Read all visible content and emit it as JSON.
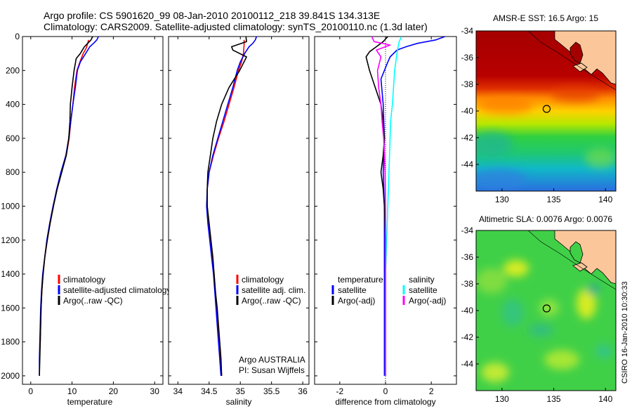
{
  "header": {
    "line1": "Argo profile: CS 5901620_99 08-Jan-2010 20100112_218 39.841S 134.313E",
    "line2": "Climatology: CARS2009. Satellite-adjusted climatology: synTS_20100110.nc (1.3d later)"
  },
  "colors": {
    "clim": "#ff0000",
    "sat": "#0000ff",
    "argo": "#000000",
    "sal_sat": "#00ffff",
    "sal_argo": "#ff00ff"
  },
  "depth_ticks": [
    0,
    200,
    400,
    600,
    800,
    1000,
    1200,
    1400,
    1600,
    1800,
    2000
  ],
  "chart_data": [
    {
      "type": "line",
      "name": "temperature",
      "xlabel": "temperature",
      "xlim": [
        -2,
        32
      ],
      "ylim": [
        2050,
        0
      ],
      "xticks": [
        0,
        10,
        20,
        30
      ],
      "legend": [
        "climatology",
        "satellite-adjusted climatology",
        "Argo(..raw -QC)"
      ],
      "series": [
        {
          "name": "climatology",
          "color": "clim",
          "points": [
            [
              14.0,
              20
            ],
            [
              13.8,
              40
            ],
            [
              13.4,
              70
            ],
            [
              12.7,
              100
            ],
            [
              11.9,
              150
            ],
            [
              11.2,
              200
            ],
            [
              10.6,
              300
            ],
            [
              10.2,
              400
            ],
            [
              9.7,
              500
            ],
            [
              9.3,
              600
            ],
            [
              8.6,
              700
            ],
            [
              7.4,
              800
            ],
            [
              6.3,
              900
            ],
            [
              5.5,
              1000
            ],
            [
              4.7,
              1100
            ],
            [
              4.0,
              1200
            ],
            [
              3.4,
              1300
            ],
            [
              3.0,
              1400
            ],
            [
              2.7,
              1500
            ],
            [
              2.5,
              1600
            ],
            [
              2.4,
              1700
            ],
            [
              2.3,
              1800
            ],
            [
              2.2,
              1850
            ]
          ]
        },
        {
          "name": "satellite-adjusted climatology",
          "color": "sat",
          "points": [
            [
              16.4,
              0
            ],
            [
              16.0,
              20
            ],
            [
              15.2,
              40
            ],
            [
              14.3,
              60
            ],
            [
              13.3,
              100
            ],
            [
              12.0,
              150
            ],
            [
              11.3,
              200
            ],
            [
              10.8,
              300
            ],
            [
              10.2,
              400
            ],
            [
              9.7,
              500
            ],
            [
              9.2,
              600
            ],
            [
              8.5,
              700
            ],
            [
              7.3,
              800
            ],
            [
              6.3,
              900
            ],
            [
              5.4,
              1000
            ],
            [
              4.6,
              1100
            ],
            [
              3.9,
              1200
            ],
            [
              3.4,
              1300
            ],
            [
              2.9,
              1400
            ],
            [
              2.6,
              1500
            ],
            [
              2.4,
              1600
            ],
            [
              2.3,
              1700
            ],
            [
              2.2,
              1800
            ],
            [
              2.1,
              1900
            ],
            [
              2.1,
              2000
            ]
          ]
        },
        {
          "name": "Argo(..raw -QC)",
          "color": "argo",
          "points": [
            [
              15.0,
              0
            ],
            [
              14.6,
              20
            ],
            [
              13.8,
              40
            ],
            [
              13.0,
              60
            ],
            [
              12.0,
              100
            ],
            [
              11.0,
              130
            ],
            [
              10.5,
              200
            ],
            [
              10.0,
              300
            ],
            [
              9.6,
              400
            ],
            [
              9.5,
              500
            ],
            [
              9.2,
              600
            ],
            [
              8.6,
              700
            ],
            [
              7.5,
              800
            ],
            [
              6.4,
              900
            ],
            [
              5.5,
              1000
            ],
            [
              4.7,
              1100
            ],
            [
              4.0,
              1200
            ],
            [
              3.4,
              1300
            ],
            [
              3.0,
              1400
            ],
            [
              2.7,
              1500
            ],
            [
              2.5,
              1600
            ],
            [
              2.4,
              1700
            ],
            [
              2.3,
              1800
            ],
            [
              2.2,
              1900
            ],
            [
              2.1,
              2000
            ]
          ]
        }
      ]
    },
    {
      "type": "line",
      "name": "salinity",
      "xlabel": "salinity",
      "xlim": [
        33.85,
        36.1
      ],
      "ylim": [
        2050,
        0
      ],
      "xticks": [
        34,
        34.5,
        35,
        35.5,
        36
      ],
      "legend": [
        "climatology",
        "satellite adj. clim.",
        "Argo(..raw -QC)"
      ],
      "annotation": [
        "Argo AUSTRALIA",
        "PI: Susan Wijffels"
      ],
      "series": [
        {
          "name": "climatology",
          "color": "clim",
          "points": [
            [
              35.06,
              20
            ],
            [
              35.06,
              50
            ],
            [
              35.05,
              100
            ],
            [
              35.02,
              150
            ],
            [
              34.97,
              200
            ],
            [
              34.9,
              300
            ],
            [
              34.82,
              400
            ],
            [
              34.74,
              500
            ],
            [
              34.65,
              600
            ],
            [
              34.57,
              700
            ],
            [
              34.5,
              800
            ],
            [
              34.47,
              900
            ],
            [
              34.47,
              1000
            ],
            [
              34.49,
              1100
            ],
            [
              34.52,
              1200
            ],
            [
              34.55,
              1300
            ],
            [
              34.58,
              1400
            ],
            [
              34.6,
              1500
            ],
            [
              34.62,
              1600
            ],
            [
              34.64,
              1700
            ],
            [
              34.66,
              1800
            ],
            [
              34.68,
              1900
            ],
            [
              34.7,
              2000
            ]
          ]
        },
        {
          "name": "satellite adj. clim.",
          "color": "sat",
          "points": [
            [
              35.26,
              0
            ],
            [
              35.24,
              20
            ],
            [
              35.2,
              40
            ],
            [
              35.14,
              60
            ],
            [
              35.07,
              100
            ],
            [
              35.0,
              150
            ],
            [
              34.95,
              200
            ],
            [
              34.88,
              300
            ],
            [
              34.8,
              400
            ],
            [
              34.72,
              500
            ],
            [
              34.64,
              600
            ],
            [
              34.56,
              700
            ],
            [
              34.5,
              800
            ],
            [
              34.47,
              900
            ],
            [
              34.46,
              1000
            ],
            [
              34.48,
              1100
            ],
            [
              34.51,
              1200
            ],
            [
              34.54,
              1300
            ],
            [
              34.57,
              1400
            ],
            [
              34.59,
              1500
            ],
            [
              34.61,
              1600
            ],
            [
              34.63,
              1700
            ],
            [
              34.65,
              1800
            ],
            [
              34.67,
              1900
            ],
            [
              34.69,
              2000
            ]
          ]
        },
        {
          "name": "Argo(..raw -QC)",
          "color": "argo",
          "points": [
            [
              35.09,
              0
            ],
            [
              35.1,
              30
            ],
            [
              34.86,
              60
            ],
            [
              34.88,
              80
            ],
            [
              35.1,
              120
            ],
            [
              34.99,
              200
            ],
            [
              34.82,
              300
            ],
            [
              34.7,
              400
            ],
            [
              34.62,
              500
            ],
            [
              34.56,
              600
            ],
            [
              34.52,
              700
            ],
            [
              34.48,
              800
            ],
            [
              34.47,
              900
            ],
            [
              34.47,
              1000
            ],
            [
              34.5,
              1100
            ],
            [
              34.53,
              1200
            ],
            [
              34.56,
              1300
            ],
            [
              34.58,
              1400
            ],
            [
              34.6,
              1500
            ],
            [
              34.63,
              1600
            ],
            [
              34.65,
              1700
            ],
            [
              34.67,
              1800
            ],
            [
              34.69,
              1900
            ],
            [
              34.7,
              2000
            ]
          ]
        }
      ]
    },
    {
      "type": "line",
      "name": "difference",
      "xlabel": "difference from climatology",
      "xlim": [
        -3.1,
        3.1
      ],
      "ylim": [
        2050,
        0
      ],
      "xticks": [
        -2,
        0,
        2
      ],
      "legend_groups": {
        "temperature": [
          "temperature",
          "satellite",
          "Argo(-adj)"
        ],
        "salinity": [
          "salinity",
          "satellite",
          "Argo(-adj)"
        ]
      },
      "series": [
        {
          "name": "temperature satellite",
          "color": "sat",
          "points": [
            [
              2.6,
              0
            ],
            [
              2.2,
              20
            ],
            [
              1.4,
              40
            ],
            [
              0.9,
              60
            ],
            [
              0.5,
              80
            ],
            [
              0.2,
              120
            ],
            [
              0.1,
              150
            ],
            [
              -0.2,
              250
            ],
            [
              -0.1,
              400
            ],
            [
              -0.05,
              600
            ],
            [
              -0.1,
              800
            ],
            [
              -0.05,
              1000
            ],
            [
              -0.05,
              1200
            ],
            [
              -0.05,
              1400
            ],
            [
              -0.05,
              1600
            ],
            [
              -0.05,
              1800
            ],
            [
              -0.05,
              2000
            ]
          ]
        },
        {
          "name": "temperature Argo(-adj)",
          "color": "argo",
          "points": [
            [
              0.1,
              0
            ],
            [
              -0.1,
              30
            ],
            [
              -0.4,
              60
            ],
            [
              -0.7,
              90
            ],
            [
              -0.85,
              120
            ],
            [
              -0.7,
              200
            ],
            [
              -0.45,
              300
            ],
            [
              -0.2,
              400
            ],
            [
              -0.1,
              500
            ],
            [
              -0.05,
              600
            ],
            [
              -0.1,
              700
            ],
            [
              -0.2,
              800
            ],
            [
              -0.1,
              900
            ],
            [
              -0.05,
              1000
            ],
            [
              0.0,
              1200
            ],
            [
              0.0,
              1400
            ],
            [
              0.0,
              1600
            ],
            [
              0.0,
              1800
            ],
            [
              0.0,
              2000
            ]
          ]
        },
        {
          "name": "salinity satellite",
          "color": "sal_sat",
          "points": [
            [
              0.7,
              0
            ],
            [
              0.6,
              30
            ],
            [
              0.55,
              60
            ],
            [
              0.5,
              100
            ],
            [
              0.4,
              200
            ],
            [
              0.3,
              400
            ],
            [
              0.22,
              500
            ],
            [
              0.2,
              600
            ],
            [
              0.15,
              800
            ],
            [
              0.1,
              1000
            ],
            [
              0.05,
              1200
            ],
            [
              0.0,
              1400
            ],
            [
              0.0,
              1600
            ],
            [
              0.0,
              1800
            ],
            [
              0.0,
              2000
            ]
          ]
        },
        {
          "name": "salinity Argo(-adj)",
          "color": "sal_argo",
          "points": [
            [
              -0.6,
              0
            ],
            [
              -0.5,
              30
            ],
            [
              0.2,
              50
            ],
            [
              -0.4,
              80
            ],
            [
              -0.2,
              120
            ],
            [
              -0.35,
              200
            ],
            [
              -0.3,
              300
            ],
            [
              -0.2,
              400
            ],
            [
              -0.15,
              500
            ],
            [
              -0.08,
              600
            ],
            [
              -0.05,
              700
            ],
            [
              -0.02,
              800
            ],
            [
              0.0,
              1000
            ],
            [
              0.0,
              1200
            ],
            [
              0.0,
              1400
            ],
            [
              0.0,
              1600
            ],
            [
              0.0,
              1800
            ],
            [
              0.0,
              2000
            ]
          ]
        }
      ]
    },
    {
      "type": "heatmap",
      "name": "sst_map",
      "title": "AMSR-E SST: 16.5 Argo: 15",
      "xlim": [
        127.5,
        141
      ],
      "ylim": [
        -46,
        -34
      ],
      "xticks": [
        130,
        135,
        140
      ],
      "yticks": [
        -34,
        -36,
        -38,
        -40,
        -42,
        -44
      ],
      "marker": {
        "lon": 134.313,
        "lat": -39.841
      }
    },
    {
      "type": "heatmap",
      "name": "sla_map",
      "title": "Altimetric SLA: 0.0076 Argo: 0.0076",
      "xlim": [
        127.5,
        141
      ],
      "ylim": [
        -46,
        -34
      ],
      "xticks": [
        130,
        135,
        140
      ],
      "yticks": [
        -34,
        -36,
        -38,
        -40,
        -42,
        -44
      ],
      "marker": {
        "lon": 134.313,
        "lat": -39.841
      }
    }
  ],
  "footer_stamp": "CSIRO 16-Jan-2010 10:30:33"
}
